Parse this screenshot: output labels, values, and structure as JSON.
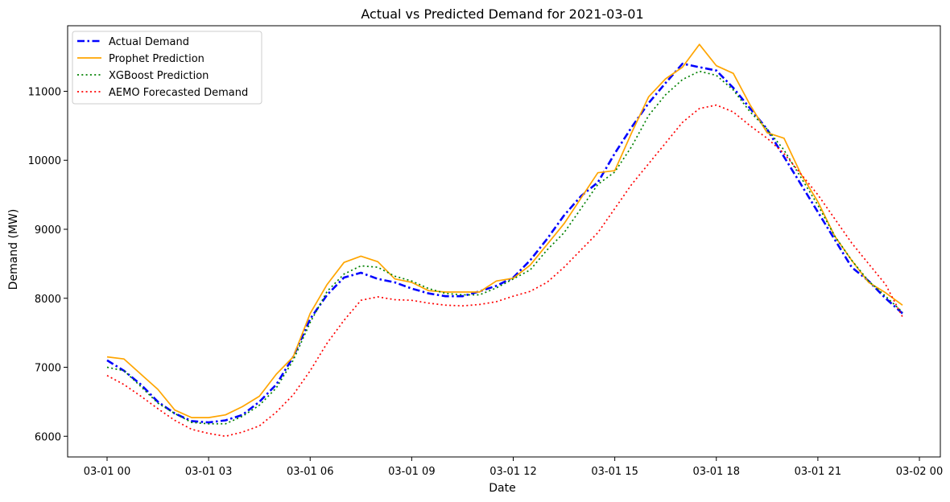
{
  "chart_data": {
    "type": "line",
    "title": "Actual vs Predicted Demand for 2021-03-01",
    "xlabel": "Date",
    "ylabel": "Demand (MW)",
    "xlim": [
      "2021-03-01 00:00",
      "2021-03-02 00:00"
    ],
    "ylim": [
      5700,
      11950
    ],
    "xticks": [
      {
        "value": "2021-03-01 00:00",
        "label": "03-01 00"
      },
      {
        "value": "2021-03-01 03:00",
        "label": "03-01 03"
      },
      {
        "value": "2021-03-01 06:00",
        "label": "03-01 06"
      },
      {
        "value": "2021-03-01 09:00",
        "label": "03-01 09"
      },
      {
        "value": "2021-03-01 12:00",
        "label": "03-01 12"
      },
      {
        "value": "2021-03-01 15:00",
        "label": "03-01 15"
      },
      {
        "value": "2021-03-01 18:00",
        "label": "03-01 18"
      },
      {
        "value": "2021-03-01 21:00",
        "label": "03-01 21"
      },
      {
        "value": "2021-03-02 00:00",
        "label": "03-02 00"
      }
    ],
    "yticks": [
      6000,
      7000,
      8000,
      9000,
      10000,
      11000
    ],
    "grid": false,
    "legend": "top-left",
    "x": [
      "2021-03-01 00:00",
      "2021-03-01 00:30",
      "2021-03-01 01:00",
      "2021-03-01 01:30",
      "2021-03-01 02:00",
      "2021-03-01 02:30",
      "2021-03-01 03:00",
      "2021-03-01 03:30",
      "2021-03-01 04:00",
      "2021-03-01 04:30",
      "2021-03-01 05:00",
      "2021-03-01 05:30",
      "2021-03-01 06:00",
      "2021-03-01 06:30",
      "2021-03-01 07:00",
      "2021-03-01 07:30",
      "2021-03-01 08:00",
      "2021-03-01 08:30",
      "2021-03-01 09:00",
      "2021-03-01 09:30",
      "2021-03-01 10:00",
      "2021-03-01 10:30",
      "2021-03-01 11:00",
      "2021-03-01 11:30",
      "2021-03-01 12:00",
      "2021-03-01 12:30",
      "2021-03-01 13:00",
      "2021-03-01 13:30",
      "2021-03-01 14:00",
      "2021-03-01 14:30",
      "2021-03-01 15:00",
      "2021-03-01 15:30",
      "2021-03-01 16:00",
      "2021-03-01 16:30",
      "2021-03-01 17:00",
      "2021-03-01 17:30",
      "2021-03-01 18:00",
      "2021-03-01 18:30",
      "2021-03-01 19:00",
      "2021-03-01 19:30",
      "2021-03-01 20:00",
      "2021-03-01 20:30",
      "2021-03-01 21:00",
      "2021-03-01 21:30",
      "2021-03-01 22:00",
      "2021-03-01 22:30",
      "2021-03-01 23:00",
      "2021-03-01 23:30"
    ],
    "series": [
      {
        "name": "Actual Demand",
        "color": "#0000ff",
        "style": "dashdot",
        "values": [
          7100,
          6950,
          6750,
          6500,
          6330,
          6220,
          6200,
          6230,
          6310,
          6500,
          6750,
          7150,
          7700,
          8050,
          8300,
          8370,
          8280,
          8230,
          8140,
          8070,
          8030,
          8030,
          8100,
          8180,
          8300,
          8550,
          8860,
          9200,
          9480,
          9680,
          10100,
          10480,
          10830,
          11120,
          11400,
          11350,
          11300,
          11050,
          10750,
          10450,
          10050,
          9650,
          9250,
          8850,
          8450,
          8250,
          8000,
          7780
        ]
      },
      {
        "name": "Prophet Prediction",
        "color": "#ffa500",
        "style": "solid",
        "values": [
          7150,
          7120,
          6900,
          6680,
          6380,
          6270,
          6270,
          6310,
          6430,
          6580,
          6900,
          7150,
          7780,
          8200,
          8520,
          8610,
          8530,
          8280,
          8230,
          8110,
          8090,
          8090,
          8090,
          8250,
          8290,
          8480,
          8780,
          9080,
          9450,
          9820,
          9850,
          10400,
          10920,
          11180,
          11350,
          11680,
          11370,
          11260,
          10800,
          10400,
          10320,
          9800,
          9400,
          8900,
          8550,
          8230,
          8080,
          7900
        ]
      },
      {
        "name": "XGBoost Prediction",
        "color": "#008000",
        "style": "dotted",
        "values": [
          7000,
          6950,
          6720,
          6480,
          6330,
          6200,
          6180,
          6180,
          6290,
          6450,
          6700,
          7100,
          7650,
          8100,
          8350,
          8470,
          8450,
          8320,
          8250,
          8140,
          8070,
          8050,
          8050,
          8150,
          8280,
          8410,
          8700,
          8950,
          9300,
          9650,
          9830,
          10200,
          10650,
          10950,
          11170,
          11290,
          11230,
          11020,
          10700,
          10450,
          10150,
          9750,
          9350,
          8900,
          8550,
          8250,
          8030,
          7800
        ]
      },
      {
        "name": "AEMO Forecasted Demand",
        "color": "#ff0000",
        "style": "dotted",
        "values": [
          6880,
          6750,
          6580,
          6400,
          6230,
          6100,
          6040,
          6000,
          6060,
          6150,
          6350,
          6600,
          6950,
          7350,
          7680,
          7970,
          8020,
          7980,
          7970,
          7930,
          7900,
          7890,
          7910,
          7950,
          8030,
          8100,
          8230,
          8450,
          8700,
          8950,
          9300,
          9650,
          9950,
          10250,
          10550,
          10750,
          10800,
          10700,
          10500,
          10320,
          10100,
          9800,
          9500,
          9150,
          8800,
          8500,
          8200,
          7730
        ]
      }
    ]
  }
}
